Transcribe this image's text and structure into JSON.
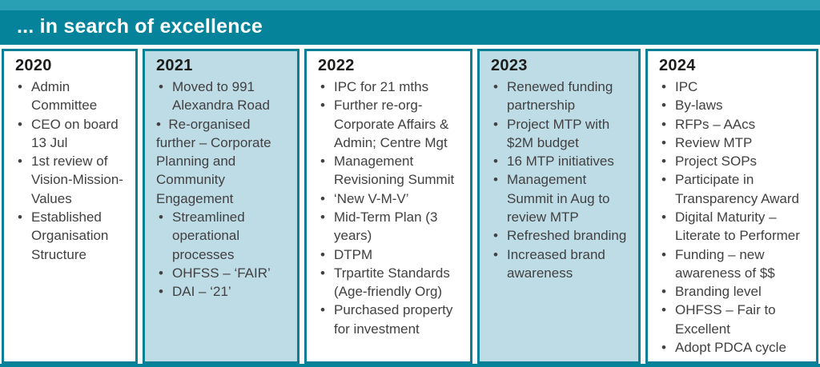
{
  "slide": {
    "title": "... in search of excellence"
  },
  "colors": {
    "header_teal": "#04839b",
    "top_strip_teal": "#2aa0b4",
    "border_teal": "#0a7f96",
    "shaded_column_blue": "#bedce6",
    "text_gray": "#414042",
    "title_white": "#ffffff"
  },
  "columns": [
    {
      "year": "2020",
      "items": [
        "Admin Committee",
        "CEO on board 13 Jul",
        "1st review of Vision-Mission-Values",
        "Established Organisation Structure"
      ]
    },
    {
      "year": "2021",
      "items": [
        "Moved to 991 Alexandra Road",
        "Re-organised further – Corporate Planning and Community Engagement",
        "Streamlined operational processes",
        "OHFSS – ‘FAIR’",
        "DAI – ‘21’"
      ]
    },
    {
      "year": "2022",
      "items": [
        "IPC for 21 mths",
        "Further re-org- Corporate Affairs & Admin; Centre Mgt",
        "Management Revisioning Summit",
        "‘New V-M-V’",
        "Mid-Term Plan (3 years)",
        "DTPM",
        "Trpartite Standards (Age-friendly Org)",
        "Purchased property for investment"
      ]
    },
    {
      "year": "2023",
      "items": [
        "Renewed funding partnership",
        "Project MTP with $2M budget",
        "16 MTP initiatives",
        "Management Summit in Aug to review MTP",
        "Refreshed branding",
        "Increased brand awareness"
      ]
    },
    {
      "year": "2024",
      "items": [
        "IPC",
        "By-laws",
        "RFPs – AAcs",
        "Review MTP",
        "Project SOPs",
        "Participate in Transparency Award",
        "Digital Maturity – Literate to Performer",
        "Funding – new awareness of $$",
        "Branding level",
        "OHFSS – Fair to Excellent",
        "Adopt PDCA cycle"
      ]
    }
  ]
}
